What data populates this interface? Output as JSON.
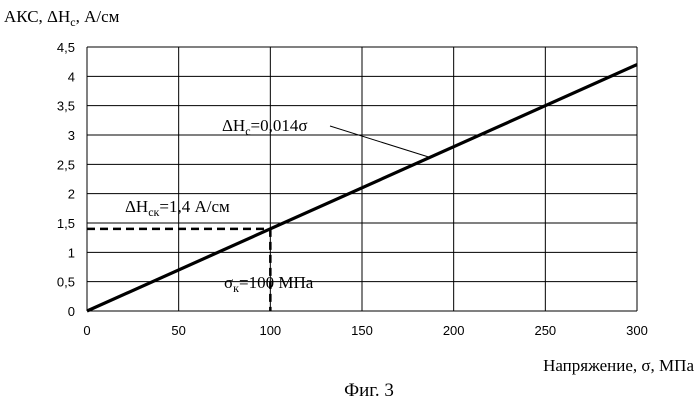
{
  "chart_data": {
    "type": "line",
    "ylabel": "АКС, ΔH",
    "ylabel_sub": "c",
    "ylabel_suffix": ", А/см",
    "xlabel": "Напряжение, σ, МПа",
    "caption": "Фиг. 3",
    "xlim": [
      0,
      300
    ],
    "ylim": [
      0,
      4.5
    ],
    "x_ticks": [
      0,
      50,
      100,
      150,
      200,
      250,
      300
    ],
    "x_tick_labels": [
      "0",
      "50",
      "100",
      "150",
      "200",
      "250",
      "300"
    ],
    "y_ticks": [
      0,
      0.5,
      1,
      1.5,
      2,
      2.5,
      3,
      3.5,
      4,
      4.5
    ],
    "y_tick_labels": [
      "0",
      "0,5",
      "1",
      "1,5",
      "2",
      "2,5",
      "3",
      "3,5",
      "4",
      "4,5"
    ],
    "grid": true,
    "series": [
      {
        "x": [
          0,
          300
        ],
        "y": [
          0,
          4.2
        ],
        "color": "#000000"
      }
    ],
    "reference_point": {
      "x": 100,
      "y": 1.4
    },
    "annotations": {
      "line_formula": {
        "main": "ΔH",
        "sub": "c",
        "rest": "=0,014σ",
        "target_x": 187
      },
      "ref_y": {
        "main": "ΔH",
        "sub": "ск",
        "rest": "=1,4 А/см"
      },
      "ref_x": {
        "main": "σ",
        "sub": "к",
        "rest": "=100 МПа"
      }
    }
  }
}
